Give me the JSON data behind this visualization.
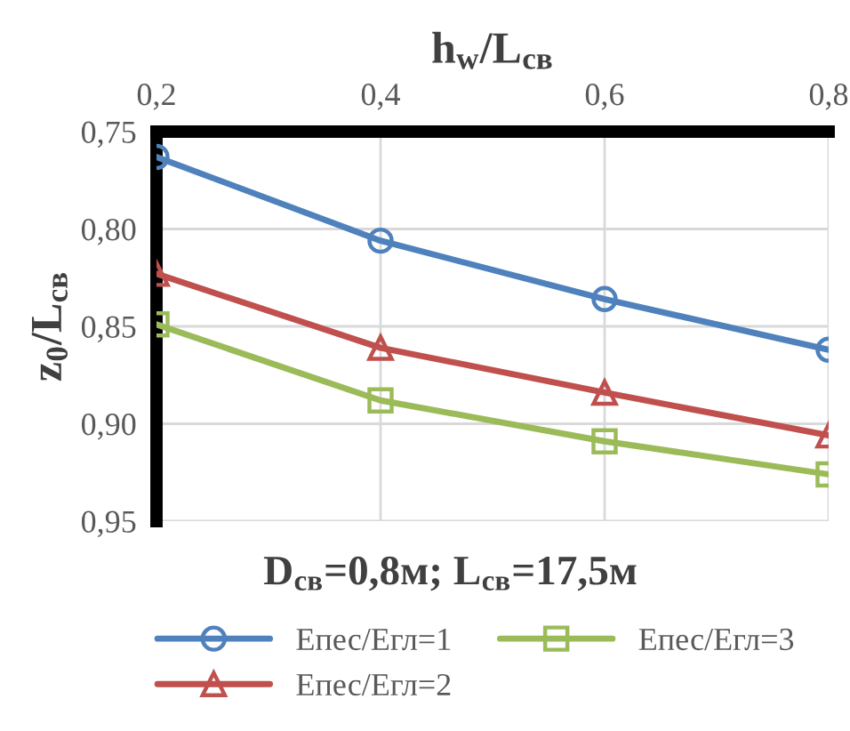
{
  "chart_data": {
    "type": "line",
    "xlabel": "h$_{w}$/L$_{св}$",
    "ylabel": "z$_{0}$/L$_{св}$",
    "annotations": [
      "D$_{св}$=0,8м; L$_{св}$=17,5м"
    ],
    "x": [
      0.2,
      0.4,
      0.6,
      0.8
    ],
    "series": [
      {
        "name": "Епес/Егл=1",
        "color": "#4f81bd",
        "marker": "circle",
        "values": [
          0.763,
          0.806,
          0.836,
          0.862
        ]
      },
      {
        "name": "Епес/Егл=2",
        "color": "#c0504d",
        "marker": "triangle",
        "values": [
          0.823,
          0.861,
          0.884,
          0.906
        ]
      },
      {
        "name": "Епес/Егл=3",
        "color": "#9bbb59",
        "marker": "square",
        "values": [
          0.849,
          0.888,
          0.909,
          0.926
        ]
      }
    ],
    "xlim": [
      0.2,
      0.8
    ],
    "xticks": [
      {
        "value": 0.2,
        "label": "0,2"
      },
      {
        "value": 0.4,
        "label": "0,4"
      },
      {
        "value": 0.6,
        "label": "0,6"
      },
      {
        "value": 0.8,
        "label": "0,8"
      }
    ],
    "ylim": [
      0.95,
      0.75
    ],
    "yticks": [
      {
        "value": 0.75,
        "label": "0,75"
      },
      {
        "value": 0.8,
        "label": "0,80"
      },
      {
        "value": 0.85,
        "label": "0,85"
      },
      {
        "value": 0.9,
        "label": "0,90"
      },
      {
        "value": 0.95,
        "label": "0,95"
      }
    ],
    "grid": true,
    "legend": "bottom",
    "line_style": "solid"
  }
}
